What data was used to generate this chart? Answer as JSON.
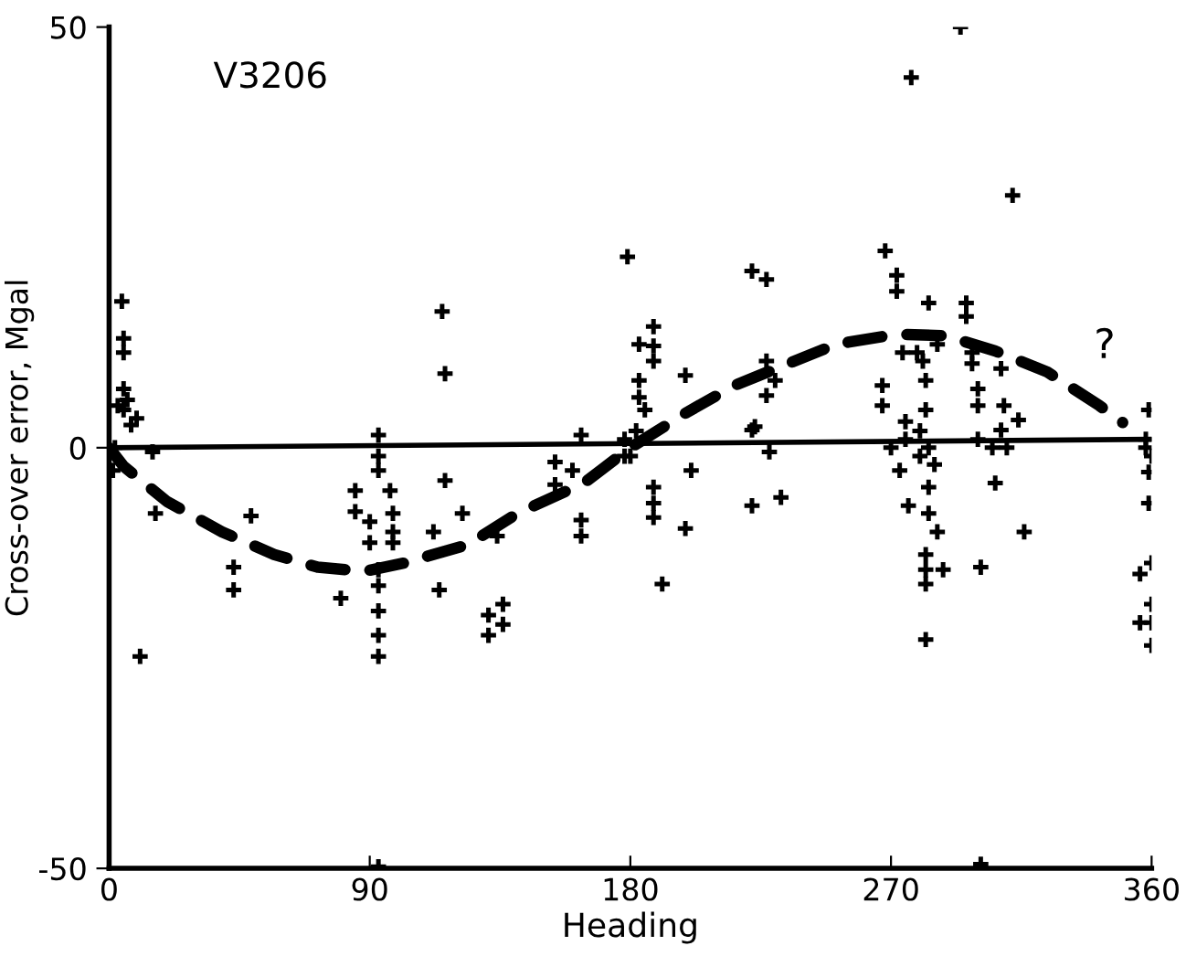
{
  "chart_data": {
    "type": "scatter",
    "title": "V3206",
    "xlabel": "Heading",
    "ylabel": "Cross-over error, Mgal",
    "xlim": [
      0,
      360
    ],
    "ylim": [
      -50,
      50
    ],
    "xticks": [
      0,
      90,
      180,
      270,
      360
    ],
    "yticks": [
      -50,
      0,
      50
    ],
    "grid": false,
    "annotations": [
      "?"
    ],
    "series": [
      {
        "color": "#000000",
        "marker": "cross",
        "x": [
          4.4,
          5,
          5,
          6.3,
          5,
          9.5,
          7.6,
          115,
          116,
          93,
          163,
          294,
          277,
          312,
          179,
          222,
          227,
          268,
          272,
          272,
          283,
          296,
          296,
          188,
          183,
          188,
          188,
          199,
          227,
          230,
          227,
          274,
          279,
          281,
          282,
          286,
          298,
          298,
          308,
          300,
          300,
          309,
          314,
          223,
          359,
          267,
          267,
          183,
          183,
          185,
          282,
          275,
          308,
          10.7,
          16,
          15,
          1.3,
          43,
          43,
          49,
          80,
          93,
          93,
          85,
          85,
          97,
          98,
          98,
          98,
          90,
          90,
          93,
          93,
          93,
          93,
          93,
          116,
          112,
          114,
          122,
          134,
          131,
          136,
          131,
          136,
          154,
          154,
          160,
          163,
          163,
          93,
          188,
          188,
          188,
          191,
          201,
          199,
          222,
          228,
          222,
          232,
          178,
          276,
          273,
          283,
          283,
          286,
          282,
          282,
          288,
          282,
          282,
          301,
          306,
          316,
          359,
          359,
          356,
          360,
          360,
          356,
          360,
          360,
          301,
          310,
          270,
          275,
          280,
          280,
          283,
          285,
          300,
          305,
          178,
          182,
          180,
          358,
          358,
          360,
          3,
          2,
          5
        ],
        "values": [
          17.4,
          13,
          11.3,
          5.7,
          4.5,
          3.5,
          2.7,
          16.2,
          8.8,
          1.5,
          1.5,
          50,
          44,
          30,
          22.7,
          21,
          20,
          23.4,
          20.5,
          18.6,
          17.2,
          17.2,
          15.6,
          14.4,
          12.3,
          12.1,
          10.3,
          8.6,
          10.3,
          8,
          6.2,
          11.3,
          11.3,
          10.3,
          8,
          12.3,
          11.3,
          10,
          9.4,
          7,
          5,
          5,
          3.3,
          2.5,
          4.5,
          7.4,
          5,
          8,
          6,
          4.5,
          4.5,
          3.1,
          2.1,
          -24.8,
          -7.8,
          -0.5,
          -2.7,
          -14.2,
          -16.9,
          -8.1,
          -17.9,
          -1,
          -2.7,
          -5.1,
          -7.6,
          -5.1,
          -7.8,
          -10,
          -11.3,
          -8.8,
          -11.3,
          -16.4,
          -19.4,
          -22.3,
          -24.8,
          -14.5,
          -3.9,
          -10,
          -16.9,
          -7.8,
          -10.5,
          -19.9,
          -18.6,
          -22.3,
          -21,
          -1.7,
          -4.4,
          -2.7,
          -8.6,
          -10.5,
          -49.8,
          -4.7,
          -6.6,
          -8.3,
          -16.2,
          -2.7,
          -9.6,
          2.1,
          -0.5,
          -6.9,
          -5.9,
          -1,
          -6.9,
          -2.7,
          -4.7,
          -7.8,
          -10,
          -12.7,
          -14.5,
          -14.5,
          -16.2,
          -22.8,
          -14.2,
          -4.2,
          -10,
          -2.9,
          -6.6,
          -15,
          -13.7,
          -18.6,
          -20.8,
          -20.8,
          -23.5,
          -49.5,
          0,
          0,
          1,
          -1,
          2,
          0,
          -2,
          1,
          0,
          1,
          2,
          -1,
          1,
          0,
          -1,
          5,
          0,
          7
        ]
      },
      {
        "type": "line",
        "color": "#000000",
        "line_style": "solid",
        "x": [
          0,
          360
        ],
        "values": [
          0,
          1
        ]
      },
      {
        "type": "line",
        "color": "#000000",
        "line_style": "dashed",
        "x": [
          0,
          5,
          20,
          39,
          57,
          72,
          88,
          102,
          124,
          141,
          164,
          180,
          199,
          216,
          251,
          272,
          289,
          306,
          324,
          342,
          350
        ],
        "values": [
          0,
          -2.2,
          -6.4,
          -10,
          -12.7,
          -14.2,
          -14.7,
          -13.7,
          -11.5,
          -7.8,
          -4.2,
          0,
          4.1,
          7.4,
          12.3,
          13.5,
          13.3,
          11.5,
          9,
          5,
          3
        ]
      }
    ]
  }
}
